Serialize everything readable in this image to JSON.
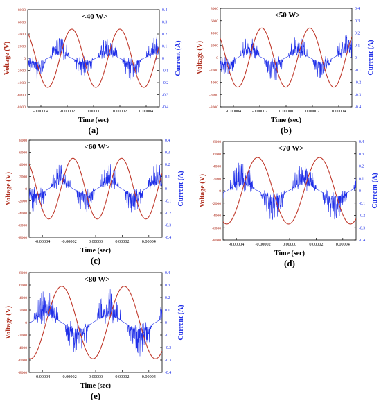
{
  "colors": {
    "voltage": "#c0392b",
    "current": "#1f2fe8",
    "axis_left": "#b03020",
    "axis_right": "#1f2fe8"
  },
  "chart_data": [
    {
      "type": "line",
      "title": "<40 W>",
      "panel_label": "(a)",
      "xlabel": "Time (sec)",
      "ylabel_left": "Voltage (V)",
      "ylabel_right": "Current (A)",
      "xlim": [
        -5e-05,
        5e-05
      ],
      "ylim_left": [
        -8000,
        8000
      ],
      "ylim_right": [
        -0.4,
        0.4
      ],
      "xticks": [
        "-0.00004",
        "-0.00002",
        "0.00000",
        "0.00002",
        "0.00004"
      ],
      "yticks_left": [
        "8000",
        "6000",
        "4000",
        "2000",
        "0",
        "-2000",
        "-4000",
        "-6000",
        "-8000"
      ],
      "yticks_right": [
        "0.4",
        "0.3",
        "0.2",
        "0.1",
        "0",
        "-0.1",
        "-0.2",
        "-0.3",
        "-0.4"
      ],
      "series": [
        {
          "axis": "left",
          "kind": "voltage",
          "amplitude": 4800,
          "period": 3.65e-05,
          "peak_time": -1.65e-05
        },
        {
          "axis": "right",
          "kind": "current",
          "amplitude": 0.03,
          "spike_amplitude": 0.15
        }
      ]
    },
    {
      "type": "line",
      "title": "<50 W>",
      "panel_label": "(b)",
      "xlabel": "Time (sec)",
      "ylabel_left": "Voltage (V)",
      "ylabel_right": "Current (A)",
      "xlim": [
        -5e-05,
        5e-05
      ],
      "ylim_left": [
        -8000,
        8000
      ],
      "ylim_right": [
        -0.4,
        0.4
      ],
      "xticks": [
        "-0.00004",
        "-0.00002",
        "0.00000",
        "0.00002",
        "0.00004"
      ],
      "yticks_left": [
        "8000",
        "6000",
        "4000",
        "2000",
        "0",
        "-2000",
        "-4000",
        "-6000",
        "-8000"
      ],
      "yticks_right": [
        "0.4",
        "0.3",
        "0.2",
        "0.1",
        "0",
        "-0.1",
        "-0.2",
        "-0.3",
        "-0.4"
      ],
      "series": [
        {
          "axis": "left",
          "kind": "voltage",
          "amplitude": 4800,
          "period": 3.65e-05,
          "peak_time": -1.85e-05
        },
        {
          "axis": "right",
          "kind": "current",
          "amplitude": 0.035,
          "spike_amplitude": 0.16
        }
      ]
    },
    {
      "type": "line",
      "title": "<60 W>",
      "panel_label": "(c)",
      "xlabel": "Time (sec)",
      "ylabel_left": "Voltage (V)",
      "ylabel_right": "Current (A)",
      "xlim": [
        -5e-05,
        5e-05
      ],
      "ylim_left": [
        -8000,
        8000
      ],
      "ylim_right": [
        -0.4,
        0.4
      ],
      "xticks": [
        "-0.00004",
        "-0.00002",
        "0.00000",
        "0.00002",
        "0.00004"
      ],
      "yticks_left": [
        "8000",
        "6000",
        "4000",
        "2000",
        "0",
        "-2000",
        "-4000",
        "-6000",
        "-8000"
      ],
      "yticks_right": [
        "0.4",
        "0.3",
        "0.2",
        "0.1",
        "0",
        "-0.1",
        "-0.2",
        "-0.3",
        "-0.4"
      ],
      "series": [
        {
          "axis": "left",
          "kind": "voltage",
          "amplitude": 5000,
          "period": 3.65e-05,
          "peak_time": -1.7e-05
        },
        {
          "axis": "right",
          "kind": "current",
          "amplitude": 0.04,
          "spike_amplitude": 0.18
        }
      ]
    },
    {
      "type": "line",
      "title": "<70 W>",
      "panel_label": "(d)",
      "xlabel": "Time (sec)",
      "ylabel_left": "Voltage (V)",
      "ylabel_right": "Current (A)",
      "xlim": [
        -5e-05,
        5e-05
      ],
      "ylim_left": [
        -8000,
        8000
      ],
      "ylim_right": [
        -0.4,
        0.4
      ],
      "xticks": [
        "-0.00004",
        "-0.00002",
        "0.00000",
        "0.00002",
        "0.00004"
      ],
      "yticks_left": [
        "8000",
        "6000",
        "4000",
        "2000",
        "0",
        "-2000",
        "-4000",
        "-6000",
        "-8000"
      ],
      "yticks_right": [
        "0.4",
        "0.3",
        "0.2",
        "0.1",
        "0",
        "-0.1",
        "-0.2",
        "-0.3",
        "-0.4"
      ],
      "series": [
        {
          "axis": "left",
          "kind": "voltage",
          "amplitude": 5400,
          "period": 4.65e-05,
          "peak_time": -2.4e-05
        },
        {
          "axis": "right",
          "kind": "current",
          "amplitude": 0.045,
          "spike_amplitude": 0.2
        }
      ]
    },
    {
      "type": "line",
      "title": "<80 W>",
      "panel_label": "(e)",
      "xlabel": "Time (sec)",
      "ylabel_left": "Voltage (V)",
      "ylabel_right": "Current (A)",
      "xlim": [
        -5e-05,
        5e-05
      ],
      "ylim_left": [
        -8000,
        8000
      ],
      "ylim_right": [
        -0.4,
        0.4
      ],
      "xticks": [
        "-0.00004",
        "-0.00002",
        "0.00000",
        "0.00002",
        "0.00004"
      ],
      "yticks_left": [
        "8000",
        "6000",
        "4000",
        "2000",
        "0",
        "-2000",
        "-4000",
        "-6000",
        "-8000"
      ],
      "yticks_right": [
        "0.4",
        "0.3",
        "0.2",
        "0.1",
        "0",
        "-0.1",
        "-0.2",
        "-0.3",
        "-0.4"
      ],
      "series": [
        {
          "axis": "left",
          "kind": "voltage",
          "amplitude": 5800,
          "period": 4.7e-05,
          "peak_time": -2.55e-05
        },
        {
          "axis": "right",
          "kind": "current",
          "amplitude": 0.05,
          "spike_amplitude": 0.22
        }
      ]
    }
  ]
}
